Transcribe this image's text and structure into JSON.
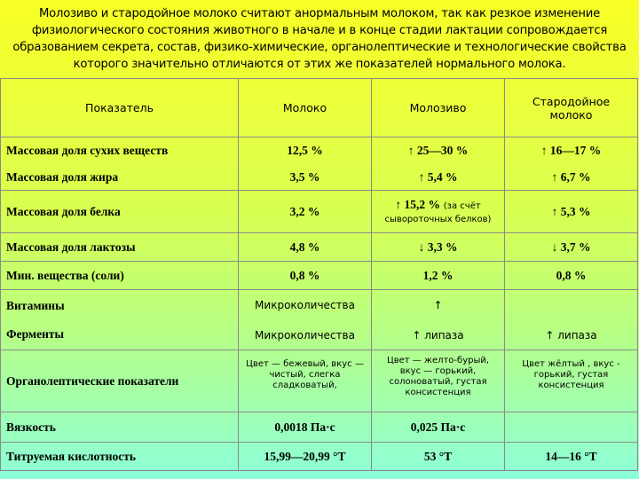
{
  "intro": "Молозиво и стародойное молоко считают анормальным молоком, так как резкое изменение физиологического состояния животного в начале и в конце стадии лактации сопровождается образованием секрета, состав, физико-химические, органолептические и технологические свойства которого значительно отличаются от этих же показателей нормального молока.",
  "table": {
    "headers": [
      "Показатель",
      "Молоко",
      "Молозиво",
      "Стародойное молоко"
    ],
    "rows": [
      {
        "label": [
          "Массовая доля сухих веществ",
          "Массовая доля жира"
        ],
        "milk": [
          "12,5 %",
          "3,5 %"
        ],
        "colostrum": [
          "↑ 25—30 %",
          "↑ 5,4 %"
        ],
        "stale": [
          "↑ 16—17 %",
          "↑ 6,7 %"
        ]
      },
      {
        "label": "Массовая доля белка",
        "milk": "3,2 %",
        "colostrum_main": "↑ 15,2 %",
        "colostrum_note": "(за счёт сывороточных белков)",
        "stale": "↑ 5,3 %"
      },
      {
        "label": "Массовая доля лактозы",
        "milk": "4,8 %",
        "colostrum": "↓ 3,3 %",
        "stale": "↓ 3,7 %"
      },
      {
        "label": "Мин. вещества (соли)",
        "milk": "0,8 %",
        "colostrum": "1,2 %",
        "stale": "0,8 %"
      },
      {
        "label": [
          "Витамины",
          "Ферменты"
        ],
        "milk": [
          "Микроколичества",
          "Микроколичества"
        ],
        "colostrum": [
          "↑",
          "↑ липаза"
        ],
        "stale": [
          "",
          "↑ липаза"
        ]
      },
      {
        "label": "Органолептические показатели",
        "milk": "Цвет — бежевый, вкус — чистый, слегка сладковатый,",
        "colostrum": "Цвет — желто-бурый, вкус — горький, солоноватый, густая консистенция",
        "stale": "Цвет жёлтый , вкус - горький, густая консистенция"
      },
      {
        "label": "Вязкость",
        "milk": "0,0018 Па·с",
        "colostrum": "0,025 Па·с",
        "stale": ""
      },
      {
        "label": "Титруемая кислотность",
        "milk": "15,99—20,99 °Т",
        "colostrum": "53 °Т",
        "stale": "14—16 °Т"
      }
    ]
  }
}
